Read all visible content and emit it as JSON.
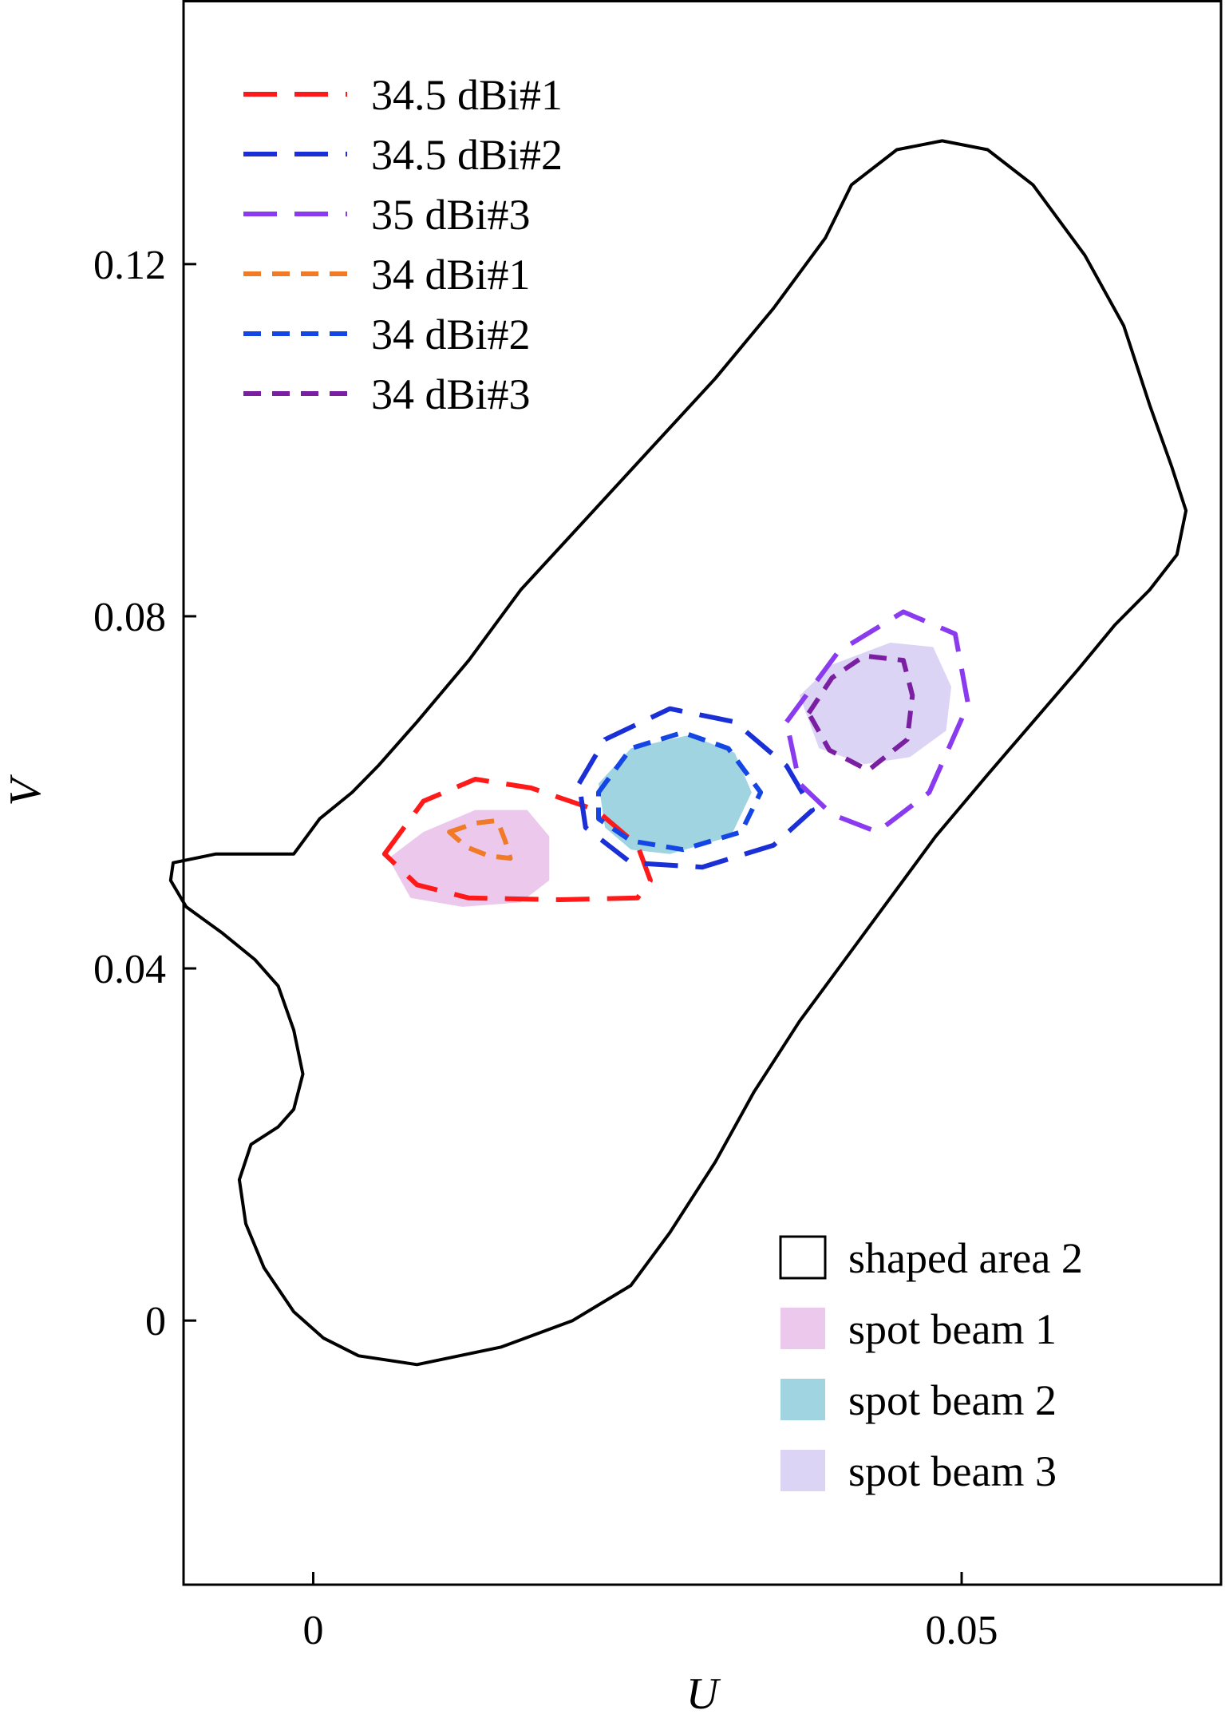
{
  "chart_data": {
    "type": "contour",
    "title": "",
    "xlabel": "U",
    "ylabel": "V",
    "xlim": [
      -0.01,
      0.07
    ],
    "ylim": [
      -0.03,
      0.15
    ],
    "xticks": [
      0,
      0.05
    ],
    "xtick_labels": [
      "0",
      "0.05"
    ],
    "yticks": [
      0,
      0.04,
      0.08,
      0.12
    ],
    "ytick_labels": [
      "0",
      "0.04",
      "0.08",
      "0.12"
    ],
    "grid": false,
    "legends": [
      {
        "placement": "top-left",
        "entries": [
          {
            "label": "34.5 dBi#1",
            "color": "#ff1a1a",
            "dash": "long"
          },
          {
            "label": "34.5 dBi#2",
            "color": "#1a2fd6",
            "dash": "long"
          },
          {
            "label": "35 dBi#3",
            "color": "#8a3bef",
            "dash": "long"
          },
          {
            "label": "34 dBi#1",
            "color": "#f07a26",
            "dash": "short"
          },
          {
            "label": "34 dBi#2",
            "color": "#1446e6",
            "dash": "short"
          },
          {
            "label": "34 dBi#3",
            "color": "#7b1fa2",
            "dash": "short"
          }
        ]
      },
      {
        "placement": "bottom-right",
        "entries": [
          {
            "label": "shaped area 2",
            "type": "outline",
            "color": "#000000"
          },
          {
            "label": "spot beam 1",
            "type": "fill",
            "color": "#ecc8ec"
          },
          {
            "label": "spot beam 2",
            "type": "fill",
            "color": "#a0d4e0"
          },
          {
            "label": "spot beam 3",
            "type": "fill",
            "color": "#dcd4f4"
          }
        ]
      }
    ],
    "series": [
      {
        "name": "shaped area 2",
        "kind": "outline",
        "color": "#000000",
        "points": [
          [
            -0.0015,
            0.053
          ],
          [
            0.0005,
            0.057
          ],
          [
            0.003,
            0.06
          ],
          [
            0.005,
            0.063
          ],
          [
            0.008,
            0.068
          ],
          [
            0.012,
            0.075
          ],
          [
            0.016,
            0.083
          ],
          [
            0.021,
            0.091
          ],
          [
            0.026,
            0.099
          ],
          [
            0.031,
            0.107
          ],
          [
            0.0355,
            0.115
          ],
          [
            0.0395,
            0.123
          ],
          [
            0.0415,
            0.129
          ],
          [
            0.045,
            0.133
          ],
          [
            0.0485,
            0.134
          ],
          [
            0.052,
            0.133
          ],
          [
            0.0555,
            0.129
          ],
          [
            0.0595,
            0.121
          ],
          [
            0.0625,
            0.113
          ],
          [
            0.0645,
            0.104
          ],
          [
            0.0662,
            0.097
          ],
          [
            0.0673,
            0.092
          ],
          [
            0.0666,
            0.087
          ],
          [
            0.0645,
            0.083
          ],
          [
            0.0618,
            0.079
          ],
          [
            0.059,
            0.074
          ],
          [
            0.0555,
            0.068
          ],
          [
            0.052,
            0.062
          ],
          [
            0.048,
            0.055
          ],
          [
            0.0445,
            0.048
          ],
          [
            0.041,
            0.041
          ],
          [
            0.0375,
            0.034
          ],
          [
            0.034,
            0.026
          ],
          [
            0.031,
            0.018
          ],
          [
            0.0275,
            0.01
          ],
          [
            0.0245,
            0.004
          ],
          [
            0.02,
            0.0
          ],
          [
            0.0145,
            -0.003
          ],
          [
            0.008,
            -0.005
          ],
          [
            0.0035,
            -0.004
          ],
          [
            0.0008,
            -0.002
          ],
          [
            -0.0015,
            0.001
          ],
          [
            -0.0038,
            0.006
          ],
          [
            -0.0052,
            0.011
          ],
          [
            -0.0057,
            0.016
          ],
          [
            -0.0048,
            0.02
          ],
          [
            -0.0027,
            0.022
          ],
          [
            -0.0015,
            0.024
          ],
          [
            -0.0008,
            0.028
          ],
          [
            -0.0015,
            0.033
          ],
          [
            -0.0027,
            0.038
          ],
          [
            -0.0045,
            0.041
          ],
          [
            -0.007,
            0.044
          ],
          [
            -0.0098,
            0.047
          ],
          [
            -0.011,
            0.05
          ],
          [
            -0.0108,
            0.052
          ],
          [
            -0.0075,
            0.053
          ],
          [
            -0.0015,
            0.053
          ]
        ]
      },
      {
        "name": "spot beam 1",
        "kind": "fill",
        "color": "#ecc8ec",
        "points": [
          [
            0.0058,
            0.0525
          ],
          [
            0.0085,
            0.0555
          ],
          [
            0.0125,
            0.058
          ],
          [
            0.0165,
            0.058
          ],
          [
            0.0182,
            0.055
          ],
          [
            0.0182,
            0.05
          ],
          [
            0.016,
            0.0475
          ],
          [
            0.0115,
            0.047
          ],
          [
            0.0075,
            0.048
          ],
          [
            0.0058,
            0.0525
          ]
        ]
      },
      {
        "name": "spot beam 2",
        "kind": "fill",
        "color": "#a0d4e0",
        "points": [
          [
            0.022,
            0.061
          ],
          [
            0.0245,
            0.065
          ],
          [
            0.029,
            0.0665
          ],
          [
            0.0325,
            0.0645
          ],
          [
            0.0338,
            0.06
          ],
          [
            0.0322,
            0.055
          ],
          [
            0.0275,
            0.053
          ],
          [
            0.0245,
            0.0535
          ],
          [
            0.0225,
            0.056
          ],
          [
            0.022,
            0.061
          ]
        ]
      },
      {
        "name": "spot beam 3",
        "kind": "fill",
        "color": "#dcd4f4",
        "points": [
          [
            0.0375,
            0.071
          ],
          [
            0.04,
            0.0745
          ],
          [
            0.0445,
            0.077
          ],
          [
            0.0478,
            0.0765
          ],
          [
            0.0492,
            0.072
          ],
          [
            0.0488,
            0.067
          ],
          [
            0.046,
            0.064
          ],
          [
            0.0425,
            0.0632
          ],
          [
            0.039,
            0.065
          ],
          [
            0.0375,
            0.071
          ]
        ]
      },
      {
        "name": "34.5 dBi#1",
        "kind": "contour",
        "color": "#ff1a1a",
        "dash": "long",
        "points": [
          [
            0.0055,
            0.053
          ],
          [
            0.0085,
            0.059
          ],
          [
            0.0125,
            0.0615
          ],
          [
            0.0168,
            0.0605
          ],
          [
            0.0218,
            0.058
          ],
          [
            0.025,
            0.054
          ],
          [
            0.026,
            0.05
          ],
          [
            0.025,
            0.048
          ],
          [
            0.019,
            0.0478
          ],
          [
            0.012,
            0.048
          ],
          [
            0.008,
            0.0495
          ],
          [
            0.0055,
            0.053
          ]
        ]
      },
      {
        "name": "34.5 dBi#2",
        "kind": "contour",
        "color": "#1a2fd6",
        "dash": "long",
        "points": [
          [
            0.0205,
            0.061
          ],
          [
            0.0225,
            0.066
          ],
          [
            0.0275,
            0.0695
          ],
          [
            0.0325,
            0.068
          ],
          [
            0.0365,
            0.063
          ],
          [
            0.0385,
            0.058
          ],
          [
            0.0355,
            0.054
          ],
          [
            0.03,
            0.0515
          ],
          [
            0.0245,
            0.052
          ],
          [
            0.021,
            0.056
          ],
          [
            0.0205,
            0.061
          ]
        ]
      },
      {
        "name": "35 dBi#3",
        "kind": "contour",
        "color": "#8a3bef",
        "dash": "long",
        "points": [
          [
            0.0365,
            0.068
          ],
          [
            0.0405,
            0.076
          ],
          [
            0.0455,
            0.0805
          ],
          [
            0.0495,
            0.078
          ],
          [
            0.0505,
            0.07
          ],
          [
            0.0475,
            0.06
          ],
          [
            0.0435,
            0.0555
          ],
          [
            0.04,
            0.0575
          ],
          [
            0.0375,
            0.061
          ],
          [
            0.0365,
            0.068
          ]
        ]
      },
      {
        "name": "34 dBi#1",
        "kind": "contour",
        "color": "#f07a26",
        "dash": "short",
        "points": [
          [
            0.0105,
            0.0555
          ],
          [
            0.0125,
            0.0565
          ],
          [
            0.0142,
            0.0568
          ],
          [
            0.0148,
            0.0545
          ],
          [
            0.0152,
            0.0525
          ],
          [
            0.0135,
            0.0528
          ],
          [
            0.0118,
            0.0538
          ],
          [
            0.0105,
            0.0555
          ]
        ]
      },
      {
        "name": "34 dBi#2",
        "kind": "contour",
        "color": "#1446e6",
        "dash": "short",
        "points": [
          [
            0.022,
            0.06
          ],
          [
            0.0245,
            0.065
          ],
          [
            0.0285,
            0.0668
          ],
          [
            0.032,
            0.065
          ],
          [
            0.0345,
            0.06
          ],
          [
            0.033,
            0.0555
          ],
          [
            0.0285,
            0.0535
          ],
          [
            0.0245,
            0.0545
          ],
          [
            0.022,
            0.057
          ],
          [
            0.022,
            0.06
          ]
        ]
      },
      {
        "name": "34 dBi#3",
        "kind": "contour",
        "color": "#7b1fa2",
        "dash": "short",
        "points": [
          [
            0.0382,
            0.069
          ],
          [
            0.04,
            0.073
          ],
          [
            0.0425,
            0.0755
          ],
          [
            0.0455,
            0.075
          ],
          [
            0.0462,
            0.071
          ],
          [
            0.0458,
            0.066
          ],
          [
            0.0428,
            0.0625
          ],
          [
            0.0398,
            0.0648
          ],
          [
            0.0382,
            0.069
          ]
        ]
      }
    ]
  }
}
